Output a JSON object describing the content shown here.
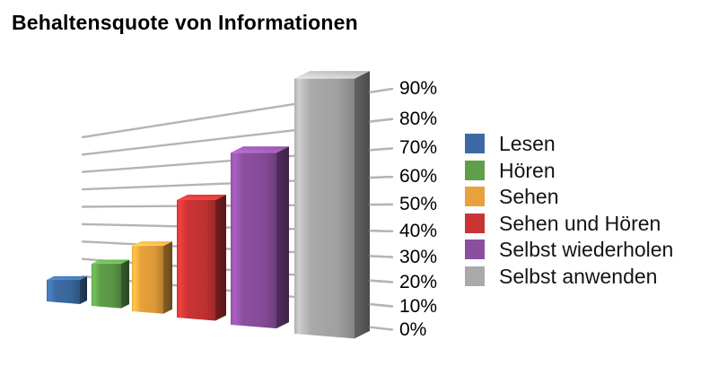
{
  "title": "Behaltensquote von Informationen",
  "chart_data": {
    "type": "bar",
    "style": "3d-perspective",
    "title": "Behaltensquote von Informationen",
    "categories": [
      "Lesen",
      "Hören",
      "Sehen",
      "Sehen und Hören",
      "Selbst wiederholen",
      "Selbst anwenden"
    ],
    "values": [
      10,
      20,
      30,
      50,
      70,
      90
    ],
    "unit": "%",
    "colors": [
      "#3C6BA3",
      "#5F9F4B",
      "#E8A23C",
      "#CA3434",
      "#8C4FA0",
      "#AAAAAA"
    ],
    "axis_ticks": [
      "0%",
      "10%",
      "20%",
      "30%",
      "40%",
      "50%",
      "60%",
      "70%",
      "80%",
      "90%"
    ],
    "ylim": [
      0,
      90
    ],
    "grid": true,
    "grid_color": "#b4b4b4",
    "legend_position": "right",
    "xlabel": "",
    "ylabel": ""
  }
}
